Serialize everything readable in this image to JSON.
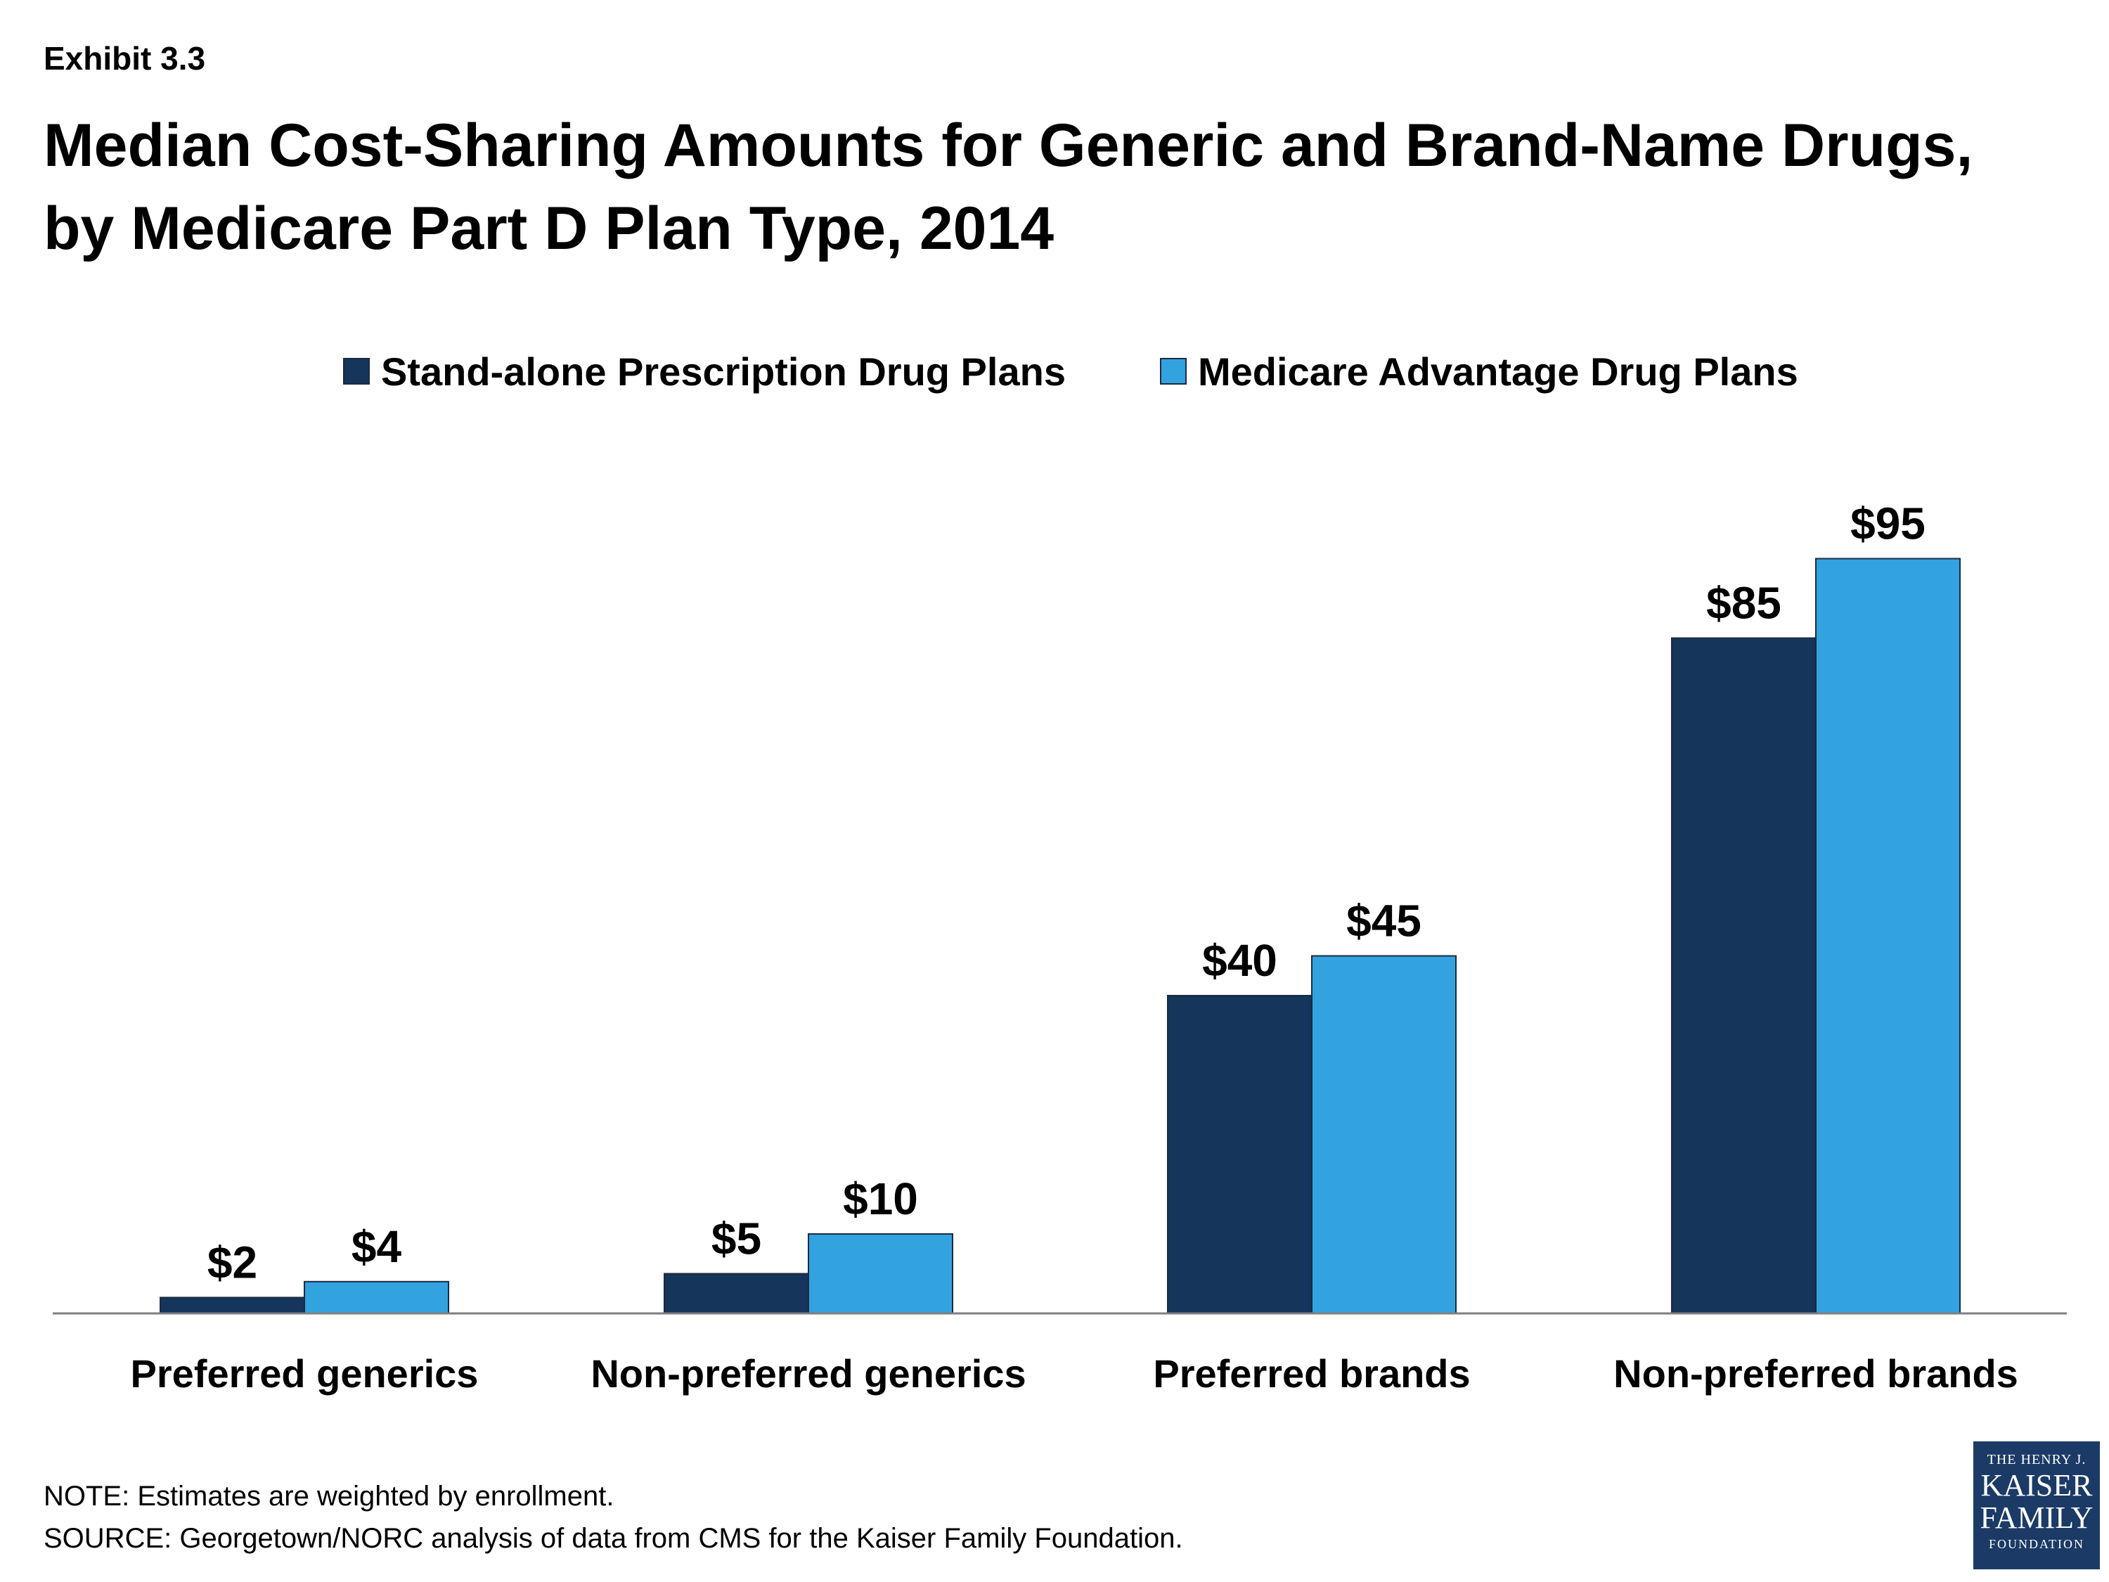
{
  "exhibit": "Exhibit 3.3",
  "title_line1": "Median Cost-Sharing Amounts for Generic and Brand-Name Drugs,",
  "title_line2": "by Medicare Part D Plan Type, 2014",
  "colors": {
    "series1": "#15355a",
    "series2": "#33a3e0",
    "axis": "#7f7f7f"
  },
  "chart_data": {
    "type": "bar",
    "categories": [
      "Preferred generics",
      "Non-preferred generics",
      "Preferred brands",
      "Non-preferred brands"
    ],
    "series": [
      {
        "name": "Stand-alone Prescription Drug Plans",
        "values": [
          2,
          5,
          40,
          85
        ],
        "labels": [
          "$2",
          "$5",
          "$40",
          "$85"
        ]
      },
      {
        "name": "Medicare Advantage Drug Plans",
        "values": [
          4,
          10,
          45,
          95
        ],
        "labels": [
          "$4",
          "$10",
          "$45",
          "$95"
        ]
      }
    ],
    "ylim": [
      0,
      100
    ],
    "grid": false,
    "legend_position": "top"
  },
  "notes": {
    "note": "NOTE: Estimates are weighted by enrollment.",
    "source": "SOURCE: Georgetown/NORC analysis of data from CMS for the Kaiser Family Foundation."
  },
  "logo": {
    "line1": "THE HENRY J.",
    "line2": "KAISER",
    "line3": "FAMILY",
    "line4": "FOUNDATION"
  }
}
